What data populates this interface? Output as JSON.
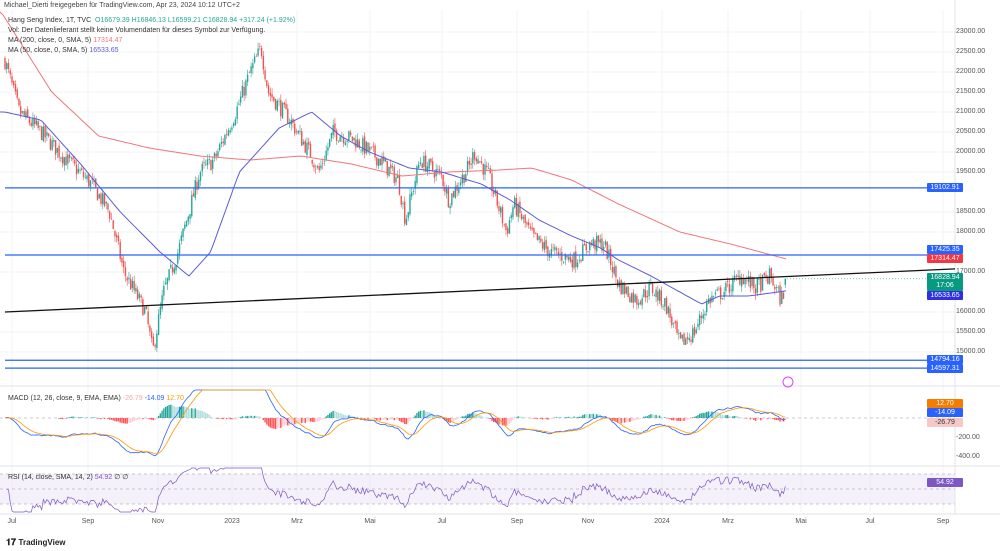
{
  "header": {
    "shared_by": "Michael_Dierti freigegeben für TradingView.com, Apr 23, 2024 10:12 UTC+2"
  },
  "legend": {
    "title": "Hang Seng Index, 1T, TVC",
    "open": "O16679.39",
    "high": "H16846.13",
    "low": "L16599.21",
    "close": "C16828.94",
    "change": "+317.24 (+1.92%)",
    "volume_note": "Vol: Der Datenlieferant stellt keine Volumendaten für dieses Symbol zur Verfügung.",
    "ma200": "MA (200, close, 0, SMA, 5)",
    "ma200_value": "17314.47",
    "ma50": "MA (50, close, 0, SMA, 5)",
    "ma50_value": "16533.65",
    "macd": "MACD (12, 26, close, 9, EMA, EMA)",
    "macd_hist": "-26.79",
    "macd_line": "-14.09",
    "macd_signal": "12.70",
    "rsi": "RSI (14, close, SMA, 14, 2)",
    "rsi_value": "54.92",
    "rsi_na": "∅ ∅"
  },
  "price_labels": {
    "h1": "19102.91",
    "h2": "17425.35",
    "ma200": "17314.47",
    "last": "16828.94",
    "countdown": "17:06",
    "ma50": "16533.65",
    "h3": "14794.16",
    "h4": "14597.31",
    "macd_signal": "12.70",
    "macd_line": "-14.09",
    "macd_hist": "-26.79",
    "rsi": "54.92"
  },
  "colors": {
    "up": "#26a69a",
    "down": "#ef5350",
    "ma200": "#f0757b",
    "ma50": "#5b5bd6",
    "hline": "#2962ff",
    "macd": "#2962ff",
    "signal": "#ff9800",
    "rsi": "#7e57c2"
  },
  "footer": {
    "brand": "TradingView"
  },
  "chart_data": {
    "type": "candlestick",
    "symbol": "Hang Seng Index",
    "interval": "1T",
    "yticks": [
      "23000.00",
      "22500.00",
      "22000.00",
      "21500.00",
      "21000.00",
      "20500.00",
      "20000.00",
      "19500.00",
      "18500.00",
      "18000.00",
      "17000.00",
      "16000.00",
      "15500.00",
      "15000.00"
    ],
    "macd_ticks": [
      "-200.00",
      "-400.00"
    ],
    "xticks": [
      "Jul",
      "Sep",
      "Nov",
      "2023",
      "Mrz",
      "Mai",
      "Jul",
      "Sep",
      "Nov",
      "2024",
      "Mrz",
      "Mai",
      "Jul",
      "Sep"
    ],
    "ylim": [
      14400,
      23300
    ],
    "horizontal_levels": [
      19102.91,
      17425.35,
      14794.16,
      14597.31
    ],
    "trendline": [
      [
        0,
        16000
      ],
      [
        25.5,
        17125
      ]
    ],
    "close_path_months_vs_price": [
      [
        -0.2,
        22300
      ],
      [
        0.2,
        21000
      ],
      [
        0.8,
        20500
      ],
      [
        1.3,
        20000
      ],
      [
        2.2,
        19200
      ],
      [
        2.7,
        18500
      ],
      [
        3.1,
        17000
      ],
      [
        3.7,
        16000
      ],
      [
        3.9,
        15000
      ],
      [
        4.2,
        16500
      ],
      [
        4.6,
        17500
      ],
      [
        5.2,
        19500
      ],
      [
        5.6,
        19800
      ],
      [
        6.2,
        21000
      ],
      [
        6.6,
        22000
      ],
      [
        6.9,
        22600
      ],
      [
        7.1,
        21500
      ],
      [
        7.7,
        20800
      ],
      [
        8.3,
        19900
      ],
      [
        8.5,
        19500
      ],
      [
        8.9,
        20500
      ],
      [
        9.5,
        20300
      ],
      [
        10.2,
        19800
      ],
      [
        10.7,
        19300
      ],
      [
        10.9,
        18300
      ],
      [
        11.3,
        19800
      ],
      [
        11.9,
        19400
      ],
      [
        12.1,
        18800
      ],
      [
        12.7,
        19700
      ],
      [
        12.8,
        20000
      ],
      [
        13.2,
        19400
      ],
      [
        13.7,
        18000
      ],
      [
        13.9,
        18700
      ],
      [
        14.4,
        17900
      ],
      [
        14.9,
        17500
      ],
      [
        15.6,
        17300
      ],
      [
        16.0,
        17700
      ],
      [
        16.4,
        17700
      ],
      [
        16.8,
        16700
      ],
      [
        17.3,
        16300
      ],
      [
        17.7,
        16600
      ],
      [
        18.1,
        16200
      ],
      [
        18.5,
        15200
      ],
      [
        18.9,
        15500
      ],
      [
        19.3,
        16300
      ],
      [
        19.7,
        16500
      ],
      [
        20.2,
        16900
      ],
      [
        20.6,
        16600
      ],
      [
        21.0,
        16900
      ],
      [
        21.3,
        16300
      ],
      [
        21.5,
        16829
      ]
    ],
    "ma200_path": [
      [
        -0.3,
        23500
      ],
      [
        1.1,
        21500
      ],
      [
        2.4,
        20400
      ],
      [
        3.8,
        20100
      ],
      [
        5.2,
        19900
      ],
      [
        6.6,
        19800
      ],
      [
        8.0,
        19900
      ],
      [
        9.4,
        19700
      ],
      [
        10.8,
        19400
      ],
      [
        12.1,
        19500
      ],
      [
        13.5,
        19550
      ],
      [
        14.4,
        19600
      ],
      [
        15.5,
        19300
      ],
      [
        16.8,
        18700
      ],
      [
        18.5,
        18000
      ],
      [
        19.9,
        17700
      ],
      [
        21.5,
        17314
      ]
    ],
    "ma50_path": [
      [
        -0.2,
        21000
      ],
      [
        0.8,
        20800
      ],
      [
        1.9,
        19700
      ],
      [
        3.0,
        18500
      ],
      [
        4.1,
        17500
      ],
      [
        4.9,
        16900
      ],
      [
        5.5,
        17500
      ],
      [
        6.3,
        19500
      ],
      [
        7.4,
        20600
      ],
      [
        8.3,
        21000
      ],
      [
        9.1,
        20400
      ],
      [
        9.9,
        20000
      ],
      [
        11.0,
        19600
      ],
      [
        11.9,
        19500
      ],
      [
        13.0,
        19200
      ],
      [
        13.8,
        18800
      ],
      [
        14.6,
        18300
      ],
      [
        15.5,
        17900
      ],
      [
        16.3,
        17600
      ],
      [
        16.8,
        17300
      ],
      [
        17.7,
        16900
      ],
      [
        18.5,
        16500
      ],
      [
        19.1,
        16200
      ],
      [
        19.6,
        16400
      ],
      [
        20.4,
        16400
      ],
      [
        21.5,
        16534
      ]
    ]
  }
}
